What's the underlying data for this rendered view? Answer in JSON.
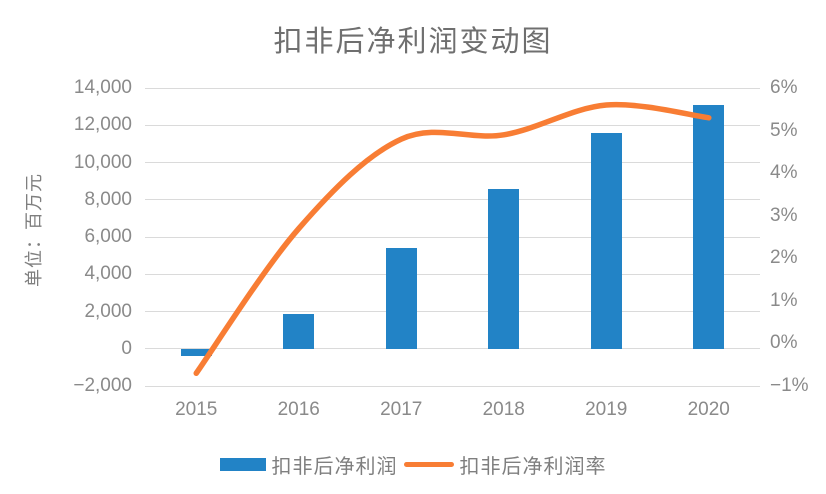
{
  "title": "扣非后净利润变动图",
  "chart_data": {
    "type": "combo-bar-line",
    "title": "扣非后净利润变动图",
    "categories": [
      "2015",
      "2016",
      "2017",
      "2018",
      "2019",
      "2020"
    ],
    "series": [
      {
        "name": "扣非后净利润",
        "type": "bar",
        "axis": "left",
        "color": "#2283c6",
        "values": [
          -400,
          1850,
          5400,
          8600,
          11600,
          13100
        ]
      },
      {
        "name": "扣非后净利润率",
        "type": "line",
        "axis": "right",
        "color": "#f87d34",
        "smooth": true,
        "values_percent": [
          -0.7,
          2.7,
          4.8,
          4.9,
          5.6,
          5.3
        ]
      }
    ],
    "left_axis": {
      "title": "单位：百万元",
      "min": -2000,
      "max": 14000,
      "step": 2000,
      "tick_labels": [
        "14,000",
        "12,000",
        "10,000",
        "8,000",
        "6,000",
        "4,000",
        "2,000",
        "0",
        "−2,000"
      ]
    },
    "right_axis": {
      "min": -1,
      "max": 6,
      "step": 1,
      "tick_labels": [
        "6%",
        "5%",
        "4%",
        "3%",
        "2%",
        "1%",
        "0%",
        "−1%"
      ]
    },
    "grid": "horizontal-only",
    "legend_position": "bottom"
  },
  "legend": {
    "items": [
      {
        "label": "扣非后净利润",
        "swatch": "bar"
      },
      {
        "label": "扣非后净利润率",
        "swatch": "line"
      }
    ]
  },
  "colors": {
    "bar": "#2283c6",
    "line": "#f87d34",
    "gridline": "#dadada",
    "tick_text": "#8a8a8a",
    "title_text": "#6f6f6f"
  }
}
